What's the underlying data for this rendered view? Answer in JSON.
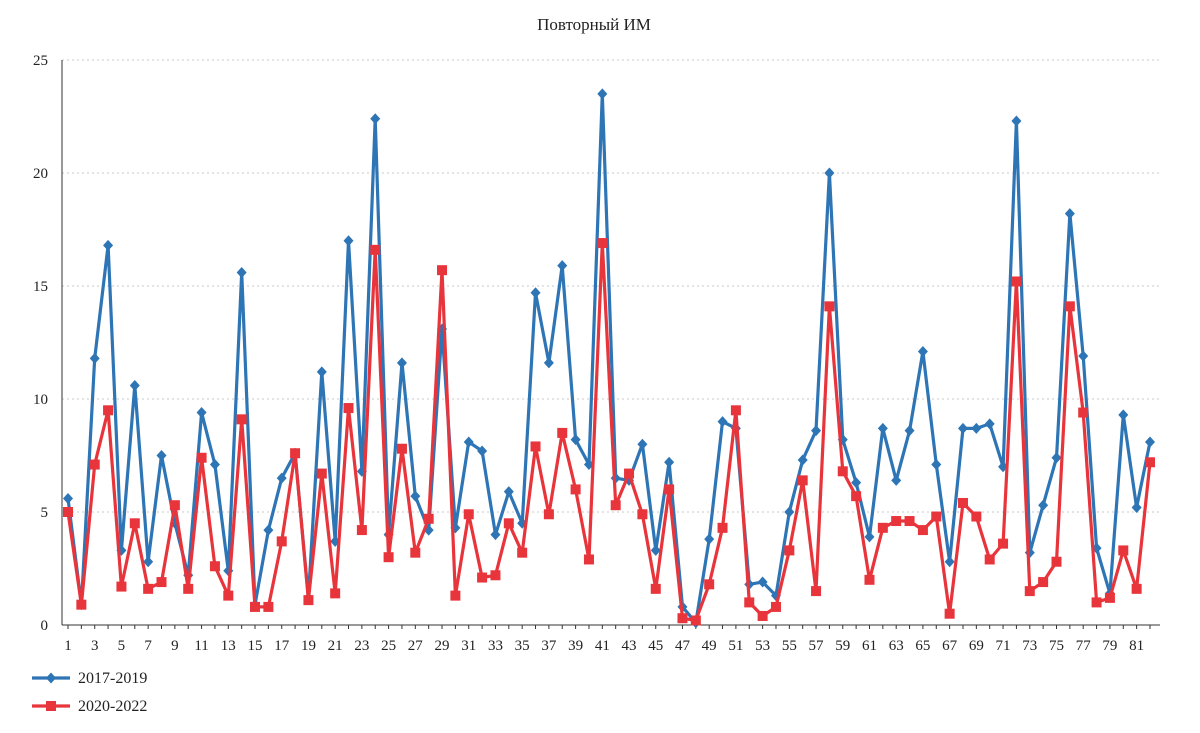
{
  "chart_data": {
    "type": "line",
    "title": "Повторный ИМ",
    "xlabel": "",
    "ylabel": "",
    "x": [
      1,
      2,
      3,
      4,
      5,
      6,
      7,
      8,
      9,
      10,
      11,
      12,
      13,
      14,
      15,
      16,
      17,
      18,
      19,
      20,
      21,
      22,
      23,
      24,
      25,
      26,
      27,
      28,
      29,
      30,
      31,
      32,
      33,
      34,
      35,
      36,
      37,
      38,
      39,
      40,
      41,
      42,
      43,
      44,
      45,
      46,
      47,
      48,
      49,
      50,
      51,
      52,
      53,
      54,
      55,
      56,
      57,
      58,
      59,
      60,
      61,
      62,
      63,
      64,
      65,
      66,
      67,
      68,
      69,
      70,
      71,
      72,
      73,
      74,
      75,
      76,
      77,
      78,
      79,
      80,
      81,
      82
    ],
    "xticks_shown": [
      1,
      3,
      5,
      7,
      9,
      11,
      13,
      15,
      17,
      19,
      21,
      23,
      25,
      27,
      29,
      31,
      33,
      35,
      37,
      39,
      41,
      43,
      45,
      47,
      49,
      51,
      53,
      55,
      57,
      59,
      61,
      63,
      65,
      67,
      69,
      71,
      73,
      75,
      77,
      79,
      81
    ],
    "yticks": [
      0,
      5,
      10,
      15,
      20,
      25
    ],
    "ylim": [
      0,
      25
    ],
    "grid": "horizontal-dotted",
    "legend_position": "bottom-left",
    "series": [
      {
        "name": "2017-2019",
        "color": "#2E75B6",
        "marker": "diamond",
        "values": [
          5.6,
          0.9,
          11.8,
          16.8,
          3.3,
          10.6,
          2.8,
          7.5,
          4.5,
          2.2,
          9.4,
          7.1,
          2.4,
          15.6,
          0.9,
          4.2,
          6.5,
          7.6,
          1.2,
          11.2,
          3.7,
          17.0,
          6.8,
          22.4,
          4.0,
          11.6,
          5.7,
          4.2,
          13.1,
          4.3,
          8.1,
          7.7,
          4.0,
          5.9,
          4.5,
          14.7,
          11.6,
          15.9,
          8.2,
          7.1,
          23.5,
          6.5,
          6.4,
          8.0,
          3.3,
          7.2,
          0.8,
          0.1,
          3.8,
          9.0,
          8.7,
          1.8,
          1.9,
          1.3,
          5.0,
          7.3,
          8.6,
          20.0,
          8.2,
          6.3,
          3.9,
          8.7,
          6.4,
          8.6,
          12.1,
          7.1,
          2.8,
          8.7,
          8.7,
          8.9,
          7.0,
          22.3,
          3.2,
          5.3,
          7.4,
          18.2,
          11.9,
          3.4,
          1.4,
          9.3,
          5.2,
          8.1
        ]
      },
      {
        "name": "2020-2022",
        "color": "#E8343B",
        "marker": "square",
        "values": [
          5.0,
          0.9,
          7.1,
          9.5,
          1.7,
          4.5,
          1.6,
          1.9,
          5.3,
          1.6,
          7.4,
          2.6,
          1.3,
          9.1,
          0.8,
          0.8,
          3.7,
          7.6,
          1.1,
          6.7,
          1.4,
          9.6,
          4.2,
          16.6,
          3.0,
          7.8,
          3.2,
          4.7,
          15.7,
          1.3,
          4.9,
          2.1,
          2.2,
          4.5,
          3.2,
          7.9,
          4.9,
          8.5,
          6.0,
          2.9,
          16.9,
          5.3,
          6.7,
          4.9,
          1.6,
          6.0,
          0.3,
          0.2,
          1.8,
          4.3,
          9.5,
          1.0,
          0.4,
          0.8,
          3.3,
          6.4,
          1.5,
          14.1,
          6.8,
          5.7,
          2.0,
          4.3,
          4.6,
          4.6,
          4.2,
          4.8,
          0.5,
          5.4,
          4.8,
          2.9,
          3.6,
          15.2,
          1.5,
          1.9,
          2.8,
          14.1,
          9.4,
          1.0,
          1.2,
          3.3,
          1.6,
          7.2
        ]
      }
    ]
  }
}
